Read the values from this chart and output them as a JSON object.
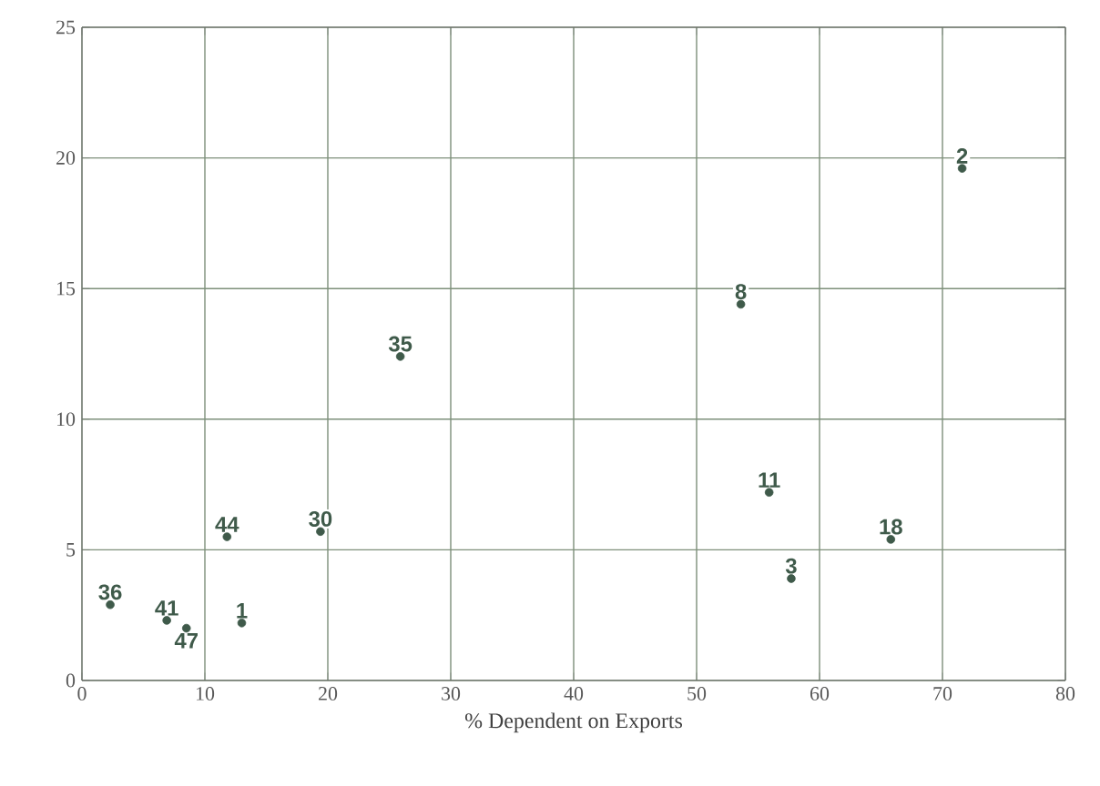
{
  "chart_data": {
    "type": "scatter",
    "xlabel": "% Dependent on Exports",
    "x": [
      2.3,
      6.9,
      8.5,
      13.0,
      11.8,
      19.4,
      25.9,
      53.6,
      55.9,
      57.7,
      65.8,
      71.6
    ],
    "values": [
      2.9,
      2.3,
      2.0,
      2.2,
      5.5,
      5.7,
      12.4,
      14.4,
      7.2,
      3.9,
      5.4,
      19.6
    ],
    "color": "#3f5a4a",
    "marker": "circle",
    "xlim": [
      0,
      80
    ],
    "ylim": [
      0,
      25
    ],
    "xticks": [
      0,
      10,
      20,
      30,
      40,
      50,
      60,
      70,
      80
    ],
    "yticks": [
      0,
      5,
      10,
      15,
      20,
      25
    ],
    "grid": true,
    "annotations": [
      {
        "text": "36",
        "x": 2.3,
        "y": 2.9
      },
      {
        "text": "41",
        "x": 6.9,
        "y": 2.3
      },
      {
        "text": "47",
        "x": 8.5,
        "y": 2.0
      },
      {
        "text": "1",
        "x": 13.0,
        "y": 2.2
      },
      {
        "text": "44",
        "x": 11.8,
        "y": 5.5
      },
      {
        "text": "30",
        "x": 19.4,
        "y": 5.7
      },
      {
        "text": "35",
        "x": 25.9,
        "y": 12.4
      },
      {
        "text": "8",
        "x": 53.6,
        "y": 14.4
      },
      {
        "text": "11",
        "x": 55.9,
        "y": 7.2
      },
      {
        "text": "3",
        "x": 57.7,
        "y": 3.9
      },
      {
        "text": "18",
        "x": 65.8,
        "y": 5.4
      },
      {
        "text": "2",
        "x": 71.6,
        "y": 19.6
      }
    ]
  }
}
